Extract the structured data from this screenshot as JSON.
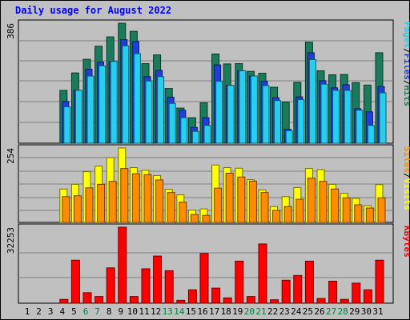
{
  "chart_data": [
    {
      "type": "bar",
      "title": "Daily usage for August 2022",
      "categories": [
        "1",
        "2",
        "3",
        "4",
        "5",
        "6",
        "7",
        "8",
        "9",
        "10",
        "11",
        "12",
        "13",
        "14",
        "15",
        "16",
        "17",
        "18",
        "19",
        "20",
        "21",
        "22",
        "23",
        "24",
        "25",
        "26",
        "27",
        "28",
        "29",
        "30",
        "31"
      ],
      "weekend_days": [
        "6",
        "7",
        "13",
        "14",
        "20",
        "21",
        "27",
        "28"
      ],
      "ymax_label": "386",
      "ylim": [
        0,
        386
      ],
      "legend": [
        "Pages",
        "/",
        "Files",
        "/",
        "Hits"
      ],
      "series": [
        {
          "name": "Hits",
          "color": "#1a7a5c",
          "values": [
            0,
            0,
            0,
            170,
            226,
            270,
            312,
            342,
            386,
            360,
            256,
            284,
            176,
            113,
            82,
            130,
            287,
            255,
            256,
            231,
            225,
            180,
            132,
            196,
            325,
            233,
            220,
            221,
            195,
            187,
            291
          ]
        },
        {
          "name": "Files",
          "color": "#1e3fd8",
          "values": [
            0,
            0,
            0,
            134,
            170,
            238,
            261,
            263,
            333,
            327,
            214,
            234,
            148,
            106,
            51,
            82,
            252,
            186,
            233,
            216,
            199,
            146,
            45,
            149,
            291,
            201,
            178,
            188,
            111,
            101,
            182
          ]
        },
        {
          "name": "Pages",
          "color": "#26cff0",
          "values": [
            0,
            0,
            0,
            117,
            170,
            216,
            249,
            263,
            313,
            288,
            200,
            214,
            128,
            82,
            38,
            57,
            199,
            186,
            233,
            216,
            185,
            137,
            40,
            140,
            269,
            190,
            170,
            170,
            106,
            57,
            162
          ]
        }
      ]
    },
    {
      "type": "bar",
      "ymax_label": "254",
      "ylim": [
        0,
        254
      ],
      "legend": [
        "Sites",
        "/",
        "Visits"
      ],
      "series": [
        {
          "name": "Visits",
          "color": "#ffff00",
          "values": [
            0,
            0,
            0,
            114,
            130,
            173,
            192,
            221,
            254,
            187,
            178,
            160,
            113,
            94,
            42,
            46,
            196,
            187,
            185,
            146,
            111,
            54,
            88,
            119,
            184,
            180,
            130,
            99,
            82,
            57,
            129
          ]
        },
        {
          "name": "Sites",
          "color": "#ff8c00",
          "values": [
            0,
            0,
            0,
            88,
            91,
            118,
            130,
            140,
            184,
            166,
            163,
            145,
            102,
            69,
            27,
            24,
            117,
            168,
            155,
            141,
            102,
            41,
            54,
            79,
            151,
            140,
            114,
            84,
            60,
            49,
            84
          ]
        }
      ]
    },
    {
      "type": "bar",
      "ymax_label": "32253",
      "ylim": [
        0,
        32253
      ],
      "legend": [
        "KBytes"
      ],
      "series": [
        {
          "name": "KBytes",
          "color": "#ff0000",
          "values": [
            0,
            0,
            0,
            1622,
            18242,
            4467,
            2839,
            15000,
            32253,
            2839,
            14600,
            20000,
            13789,
            1217,
            5678,
            21093,
            6408,
            2250,
            17850,
            2839,
            25147,
            1460,
            9733,
            11760,
            17850,
            2000,
            9336,
            1622,
            8516,
            5678,
            18242
          ]
        }
      ]
    }
  ]
}
